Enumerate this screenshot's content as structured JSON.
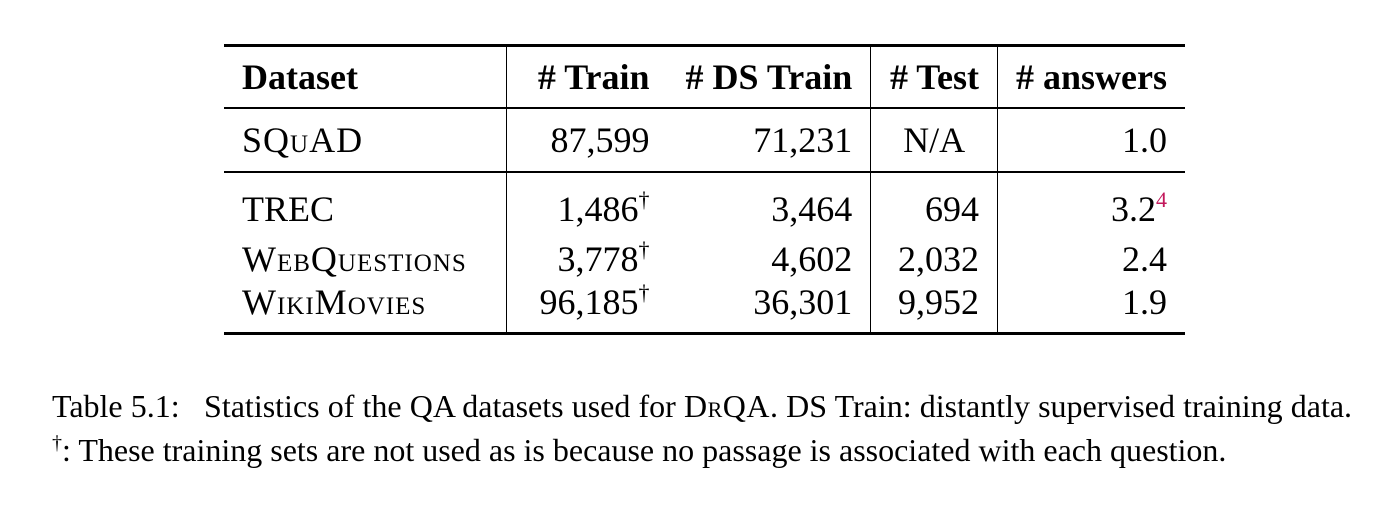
{
  "table": {
    "headers": [
      "Dataset",
      "# Train",
      "# DS Train",
      "# Test",
      "# answers"
    ],
    "rows": [
      {
        "dataset": "SQuAD",
        "train": "87,599",
        "train_mark": "",
        "ds_train": "71,231",
        "test": "N/A",
        "answers": "1.0",
        "answers_note": ""
      },
      {
        "dataset": "TREC",
        "train": "1,486",
        "train_mark": "†",
        "ds_train": "3,464",
        "test": "694",
        "answers": "3.2",
        "answers_note": "4"
      },
      {
        "dataset": "WebQuestions",
        "train": "3,778",
        "train_mark": "†",
        "ds_train": "4,602",
        "test": "2,032",
        "answers": "2.4",
        "answers_note": ""
      },
      {
        "dataset": "WikiMovies",
        "train": "96,185",
        "train_mark": "†",
        "ds_train": "36,301",
        "test": "9,952",
        "answers": "1.9",
        "answers_note": ""
      }
    ]
  },
  "caption": {
    "label": "Table 5.1:",
    "text_1": "Statistics of the QA datasets used for",
    "system": "DrQA",
    "text_2": ". DS Train: distantly supervised training data.",
    "dagger": "†",
    "text_3": ": These training sets are not used as is because no passage is associated with each question."
  },
  "colors": {
    "text": "#000000",
    "footnote_link": "#c2185b"
  }
}
